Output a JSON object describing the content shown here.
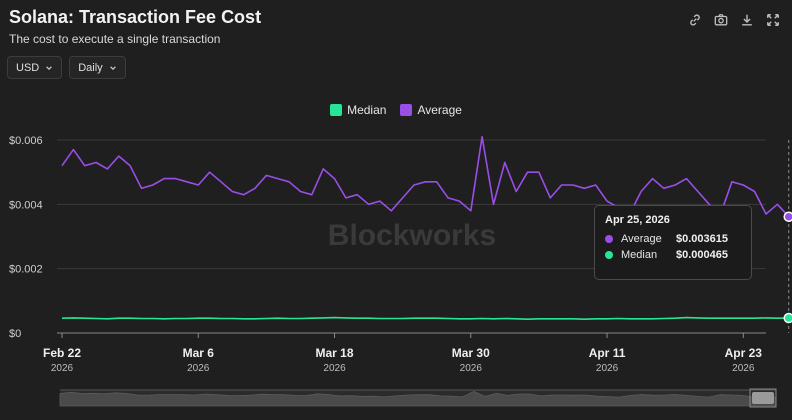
{
  "header": {
    "title": "Solana: Transaction Fee Cost",
    "subtitle": "The cost to execute a single transaction"
  },
  "toolbar": {
    "icons": [
      "link-icon",
      "camera-icon",
      "download-icon",
      "fullscreen-icon"
    ]
  },
  "controls": {
    "currency": "USD",
    "interval": "Daily"
  },
  "watermark": "Blockworks",
  "colors": {
    "median": "#27e597",
    "average": "#9a4ee8",
    "grid": "#3a3a3a",
    "axis": "#cfcfcf"
  },
  "tooltip": {
    "date": "Apr 25, 2026",
    "rows": [
      {
        "name": "Average",
        "value": "$0.003615"
      },
      {
        "name": "Median",
        "value": "$0.000465"
      }
    ]
  },
  "chart_data": {
    "type": "line",
    "title": "Solana: Transaction Fee Cost",
    "subtitle": "The cost to execute a single transaction",
    "legend": {
      "position": "top-center",
      "entries": [
        "Median",
        "Average"
      ]
    },
    "ylim": [
      0,
      0.006
    ],
    "yticks": [
      0,
      0.002,
      0.004,
      0.006
    ],
    "ytick_labels": [
      "$0",
      "$0.002",
      "$0.004",
      "$0.006"
    ],
    "x_start": "2026-02-22",
    "x_end": "2026-04-25",
    "xticks": [
      {
        "date": "2026-02-22",
        "label": "Feb 22",
        "year": "2026"
      },
      {
        "date": "2026-03-06",
        "label": "Mar 6",
        "year": "2026"
      },
      {
        "date": "2026-03-18",
        "label": "Mar 18",
        "year": "2026"
      },
      {
        "date": "2026-03-30",
        "label": "Mar 30",
        "year": "2026"
      },
      {
        "date": "2026-04-11",
        "label": "Apr 11",
        "year": "2026"
      },
      {
        "date": "2026-04-23",
        "label": "Apr 23",
        "year": "2026"
      }
    ],
    "grid": true,
    "series": [
      {
        "name": "Average",
        "color": "#9a4ee8",
        "values": [
          0.0052,
          0.0057,
          0.0052,
          0.0053,
          0.0051,
          0.0055,
          0.0052,
          0.0045,
          0.0046,
          0.0048,
          0.0048,
          0.0047,
          0.0046,
          0.005,
          0.0047,
          0.0044,
          0.0043,
          0.0045,
          0.0049,
          0.0048,
          0.0047,
          0.0044,
          0.0043,
          0.0051,
          0.0048,
          0.0042,
          0.0043,
          0.004,
          0.0041,
          0.0038,
          0.0042,
          0.0046,
          0.0047,
          0.0047,
          0.0042,
          0.0041,
          0.0038,
          0.0061,
          0.004,
          0.0053,
          0.0044,
          0.005,
          0.005,
          0.0042,
          0.0046,
          0.0046,
          0.0045,
          0.0046,
          0.0041,
          0.0039,
          0.0037,
          0.0044,
          0.0048,
          0.0045,
          0.0046,
          0.0048,
          0.0044,
          0.004,
          0.0037,
          0.0047,
          0.0046,
          0.0044,
          0.0037,
          0.004,
          0.003615
        ]
      },
      {
        "name": "Median",
        "color": "#27e597",
        "values": [
          0.00046,
          0.00047,
          0.00046,
          0.00045,
          0.00044,
          0.00046,
          0.00046,
          0.00045,
          0.00045,
          0.00044,
          0.00045,
          0.00045,
          0.00046,
          0.00046,
          0.00045,
          0.00045,
          0.00044,
          0.00044,
          0.00045,
          0.00046,
          0.00045,
          0.00045,
          0.00046,
          0.00047,
          0.00048,
          0.00047,
          0.00046,
          0.00046,
          0.00045,
          0.00045,
          0.00045,
          0.00046,
          0.00046,
          0.00046,
          0.00045,
          0.00044,
          0.00044,
          0.00045,
          0.00044,
          0.00045,
          0.00044,
          0.00043,
          0.00044,
          0.00044,
          0.00044,
          0.00044,
          0.00043,
          0.00044,
          0.00044,
          0.00045,
          0.00044,
          0.00044,
          0.00044,
          0.00045,
          0.00046,
          0.00048,
          0.00047,
          0.00046,
          0.00046,
          0.00046,
          0.00046,
          0.00046,
          0.00047,
          0.00046,
          0.000465
        ]
      }
    ]
  }
}
